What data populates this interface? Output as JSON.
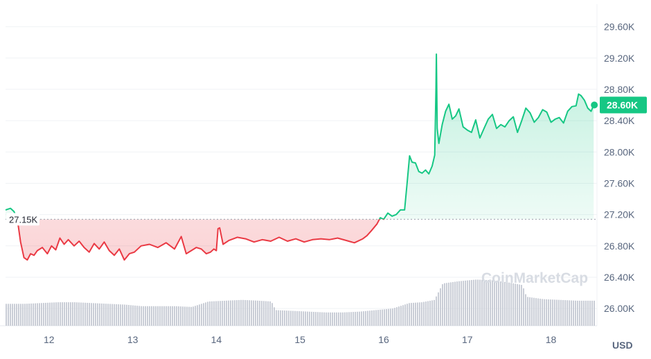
{
  "chart_data": {
    "type": "area",
    "y_ticks": [
      "29.60K",
      "29.20K",
      "28.80K",
      "28.40K",
      "28.00K",
      "27.60K",
      "27.20K",
      "26.80K",
      "26.40K",
      "26.00K"
    ],
    "y_tick_values": [
      29600,
      29200,
      28800,
      28400,
      28000,
      27600,
      27200,
      26800,
      26400,
      26000
    ],
    "ylim": [
      25780,
      29800
    ],
    "x_ticks": [
      "12",
      "13",
      "14",
      "15",
      "16",
      "17",
      "18"
    ],
    "x_tick_values": [
      12,
      13,
      14,
      15,
      16,
      17,
      18
    ],
    "xlim": [
      11.48,
      18.55
    ],
    "unit_label": "USD",
    "baseline": {
      "label": "27.15K",
      "value": 27140
    },
    "current": {
      "label": "28.60K",
      "value": 28600
    },
    "watermark": "CoinMarketCap",
    "colors": {
      "up": "#16c784",
      "down": "#ea3943",
      "grid": "#eff2f5",
      "volume": "#c9cdd6",
      "text": "#58667e"
    },
    "series": [
      {
        "x": [
          11.48,
          11.54,
          11.58,
          11.62,
          11.66,
          11.7,
          11.74,
          11.78,
          11.82,
          11.86,
          11.92,
          11.98,
          12.03,
          12.08,
          12.13,
          12.18,
          12.23,
          12.3,
          12.36,
          12.42,
          12.48,
          12.54,
          12.6,
          12.66,
          12.72,
          12.78,
          12.84,
          12.9,
          12.96,
          13.02,
          13.1,
          13.2,
          13.3,
          13.4,
          13.5,
          13.58,
          13.64,
          13.7,
          13.76,
          13.82,
          13.88,
          13.93,
          13.97,
          14.0,
          14.02,
          14.04,
          14.08,
          14.15,
          14.25,
          14.35,
          14.45,
          14.55,
          14.65,
          14.75,
          14.85,
          14.95,
          15.05,
          15.15,
          15.25,
          15.35,
          15.45,
          15.55,
          15.65,
          15.75,
          15.8,
          15.85,
          15.92,
          15.96,
          16.0,
          16.05,
          16.1,
          16.15,
          16.2,
          16.25,
          16.28,
          16.31,
          16.34,
          16.38,
          16.42,
          16.46,
          16.5,
          16.54,
          16.58,
          16.61,
          16.625,
          16.63,
          16.64,
          16.66,
          16.7,
          16.74,
          16.78,
          16.82,
          16.86,
          16.9,
          16.95,
          17.0,
          17.05,
          17.1,
          17.15,
          17.2,
          17.25,
          17.3,
          17.35,
          17.4,
          17.45,
          17.5,
          17.55,
          17.6,
          17.65,
          17.7,
          17.75,
          17.8,
          17.85,
          17.9,
          17.95,
          18.0,
          18.05,
          18.1,
          18.15,
          18.2,
          18.25,
          18.3,
          18.33,
          18.36,
          18.4,
          18.44,
          18.48,
          18.51
        ],
        "y": [
          27260,
          27280,
          27240,
          27150,
          26850,
          26650,
          26620,
          26700,
          26680,
          26740,
          26780,
          26700,
          26800,
          26750,
          26900,
          26820,
          26880,
          26800,
          26860,
          26780,
          26720,
          26830,
          26760,
          26850,
          26740,
          26680,
          26760,
          26620,
          26700,
          26720,
          26800,
          26820,
          26780,
          26840,
          26760,
          26920,
          26700,
          26740,
          26780,
          26760,
          26700,
          26720,
          26760,
          26740,
          27020,
          27030,
          26820,
          26870,
          26910,
          26890,
          26850,
          26880,
          26860,
          26910,
          26860,
          26890,
          26850,
          26880,
          26890,
          26880,
          26900,
          26870,
          26840,
          26890,
          26930,
          26990,
          27080,
          27160,
          27140,
          27220,
          27180,
          27200,
          27260,
          27260,
          27600,
          27950,
          27870,
          27860,
          27750,
          27730,
          27770,
          27720,
          27820,
          27960,
          28800,
          29250,
          28300,
          28110,
          28350,
          28520,
          28610,
          28420,
          28460,
          28550,
          28320,
          28280,
          28250,
          28410,
          28180,
          28300,
          28420,
          28480,
          28300,
          28350,
          28320,
          28400,
          28450,
          28250,
          28400,
          28560,
          28500,
          28380,
          28440,
          28540,
          28510,
          28380,
          28420,
          28440,
          28370,
          28520,
          28580,
          28590,
          28740,
          28720,
          28660,
          28560,
          28520,
          28600
        ]
      }
    ],
    "volume": {
      "x": [
        11.5,
        11.7,
        11.9,
        12.1,
        12.3,
        12.5,
        12.7,
        12.9,
        13.1,
        13.3,
        13.5,
        13.7,
        13.9,
        14.1,
        14.3,
        14.5,
        14.65,
        14.7,
        14.9,
        15.1,
        15.3,
        15.5,
        15.7,
        15.9,
        16.1,
        16.3,
        16.45,
        16.6,
        16.7,
        16.9,
        17.1,
        17.3,
        17.5,
        17.65,
        17.7,
        17.9,
        18.1,
        18.3,
        18.5
      ],
      "y": [
        26060,
        26060,
        26070,
        26080,
        26080,
        26070,
        26060,
        26050,
        26030,
        26030,
        26030,
        26020,
        26090,
        26100,
        26110,
        26100,
        26090,
        25980,
        25970,
        25960,
        25950,
        25950,
        25960,
        25980,
        26000,
        26070,
        26080,
        26110,
        26320,
        26350,
        26370,
        26360,
        26330,
        26300,
        26150,
        26120,
        26110,
        26100,
        26100
      ]
    }
  }
}
